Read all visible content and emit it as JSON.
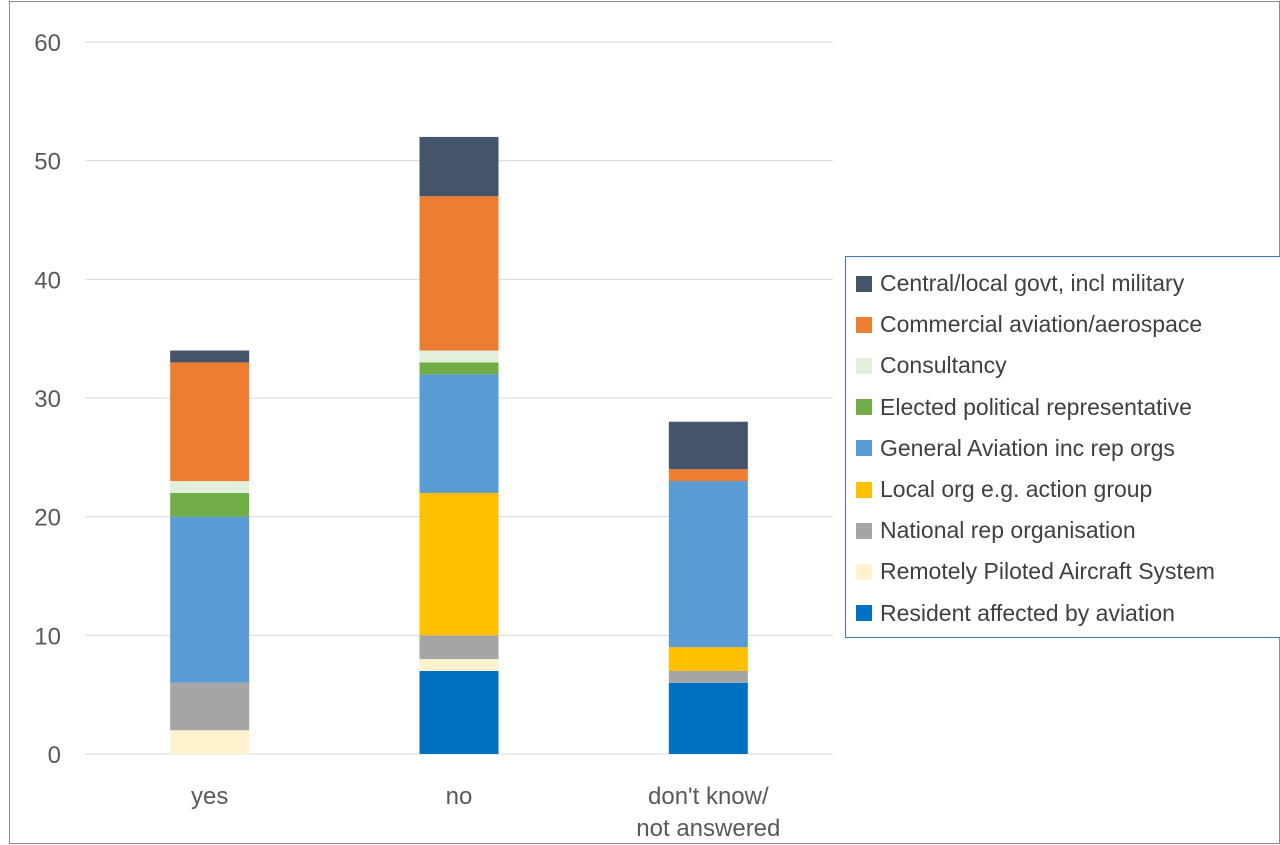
{
  "chart_data": {
    "type": "bar",
    "stacked": true,
    "categories": [
      "yes",
      "no",
      "don't know/\nnot answered"
    ],
    "category_lines": [
      [
        "yes"
      ],
      [
        "no"
      ],
      [
        "don't know/",
        "not answered"
      ]
    ],
    "ylim": [
      0,
      60
    ],
    "yticks": [
      0,
      10,
      20,
      30,
      40,
      50,
      60
    ],
    "grid": true,
    "legend_position": "right",
    "series": [
      {
        "name": "Resident affected by aviation",
        "color": "#0070c0",
        "values": [
          0,
          7,
          6
        ]
      },
      {
        "name": "Remotely Piloted Aircraft System",
        "color": "#fff2cc",
        "values": [
          2,
          1,
          0
        ]
      },
      {
        "name": "National rep organisation",
        "color": "#a5a5a5",
        "values": [
          4,
          2,
          1
        ]
      },
      {
        "name": "Local org e.g. action group",
        "color": "#ffc000",
        "values": [
          0,
          12,
          2
        ]
      },
      {
        "name": "General Aviation inc rep orgs",
        "color": "#5b9bd5",
        "values": [
          14,
          10,
          14
        ]
      },
      {
        "name": "Elected political representative",
        "color": "#70ad47",
        "values": [
          2,
          1,
          0
        ]
      },
      {
        "name": "Consultancy",
        "color": "#e2efda",
        "values": [
          1,
          1,
          0
        ]
      },
      {
        "name": "Commercial aviation/aerospace",
        "color": "#ed7d31",
        "values": [
          10,
          13,
          1
        ]
      },
      {
        "name": "Central/local govt, incl military",
        "color": "#44546a",
        "values": [
          1,
          5,
          4
        ]
      }
    ]
  },
  "legend": {
    "items": [
      {
        "label": "Central/local govt, incl military",
        "color": "#44546a"
      },
      {
        "label": "Commercial aviation/aerospace",
        "color": "#ed7d31"
      },
      {
        "label": "Consultancy",
        "color": "#e2efda"
      },
      {
        "label": "Elected political representative",
        "color": "#70ad47"
      },
      {
        "label": "General Aviation inc rep orgs",
        "color": "#5b9bd5"
      },
      {
        "label": "Local org e.g. action group",
        "color": "#ffc000"
      },
      {
        "label": "National rep organisation",
        "color": "#a5a5a5"
      },
      {
        "label": "Remotely Piloted Aircraft System",
        "color": "#fff2cc"
      },
      {
        "label": "Resident affected by aviation",
        "color": "#0070c0"
      }
    ]
  }
}
